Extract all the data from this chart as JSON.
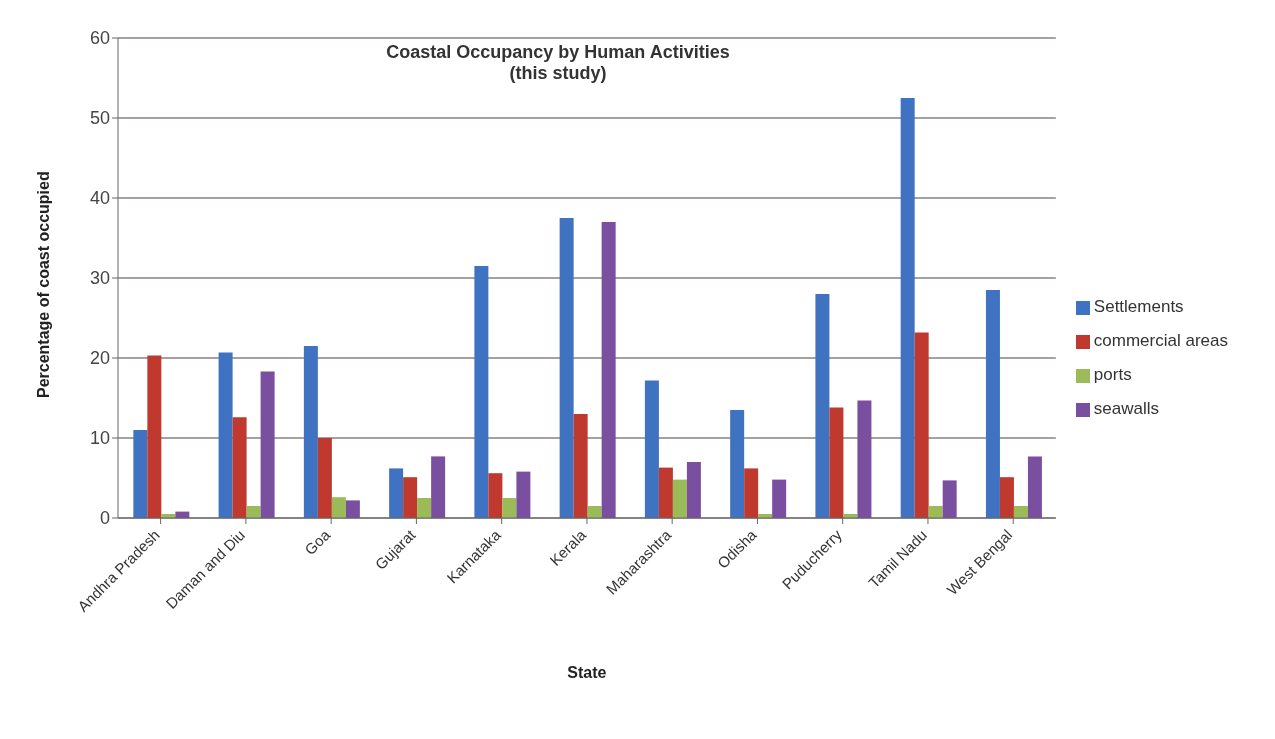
{
  "chart_data": {
    "type": "bar",
    "title": "Coastal Occupancy by Human Activities\n(this study)",
    "xlabel": "State",
    "ylabel": "Percentage of coast occupied",
    "categories": [
      "Andhra Pradesh",
      "Daman and Diu",
      "Goa",
      "Gujarat",
      "Karnataka",
      "Kerala",
      "Maharashtra",
      "Odisha",
      "Puducherry",
      "Tamil Nadu",
      "West Bengal"
    ],
    "series": [
      {
        "name": "Settlements",
        "color": "#3f72c0",
        "values": [
          11,
          20.7,
          21.5,
          6.2,
          31.5,
          37.5,
          17.2,
          13.5,
          28,
          52.5,
          28.5
        ]
      },
      {
        "name": "commercial areas",
        "color": "#c0392f",
        "values": [
          20.3,
          12.6,
          10,
          5.1,
          5.6,
          13,
          6.3,
          6.2,
          13.8,
          23.2,
          5.1
        ]
      },
      {
        "name": "ports",
        "color": "#9bbb59",
        "values": [
          0.5,
          1.5,
          2.6,
          2.5,
          2.5,
          1.5,
          4.8,
          0.5,
          0.5,
          1.5,
          1.5
        ]
      },
      {
        "name": "seawalls",
        "color": "#7a4fa0",
        "values": [
          0.8,
          18.3,
          2.2,
          7.7,
          5.8,
          37,
          7,
          4.8,
          14.7,
          4.7,
          7.7
        ]
      }
    ],
    "ylim": [
      0,
      60
    ],
    "yticks": [
      0,
      10,
      20,
      30,
      40,
      50,
      60
    ],
    "grid": "y",
    "legend": "right"
  }
}
